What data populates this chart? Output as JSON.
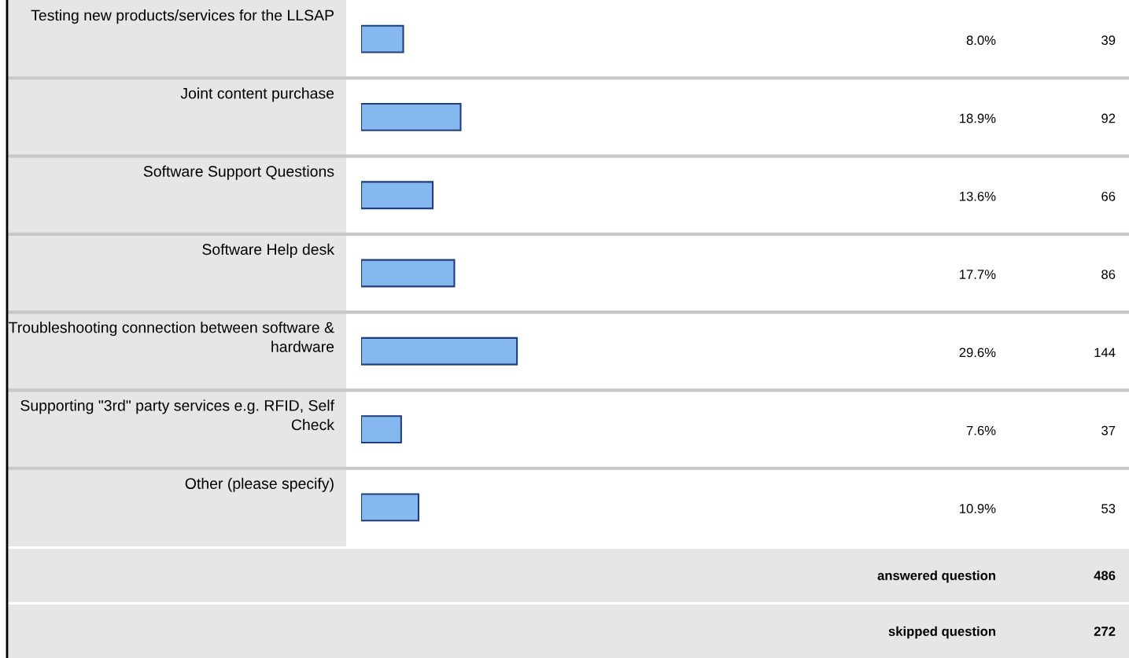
{
  "chart_data": {
    "type": "bar",
    "orientation": "horizontal",
    "tick_labels": false,
    "categories": [
      "Testing new products/services for the LLSAP",
      "Joint content purchase",
      "Software Support Questions",
      "Software Help desk",
      "Troubleshooting connection between software & hardware",
      "Supporting \"3rd\" party services e.g. RFID, Self Check",
      "Other (please specify)"
    ],
    "values": [
      8.0,
      18.9,
      13.6,
      17.7,
      29.6,
      7.6,
      10.9
    ],
    "value_labels": [
      "8.0%",
      "18.9%",
      "13.6%",
      "17.7%",
      "29.6%",
      "7.6%",
      "10.9%"
    ],
    "color": "#86b8f0",
    "annotations": [
      "39",
      "92",
      "66",
      "86",
      "144",
      "37",
      "53",
      "answered question",
      "486",
      "skipped question",
      "272"
    ]
  }
}
